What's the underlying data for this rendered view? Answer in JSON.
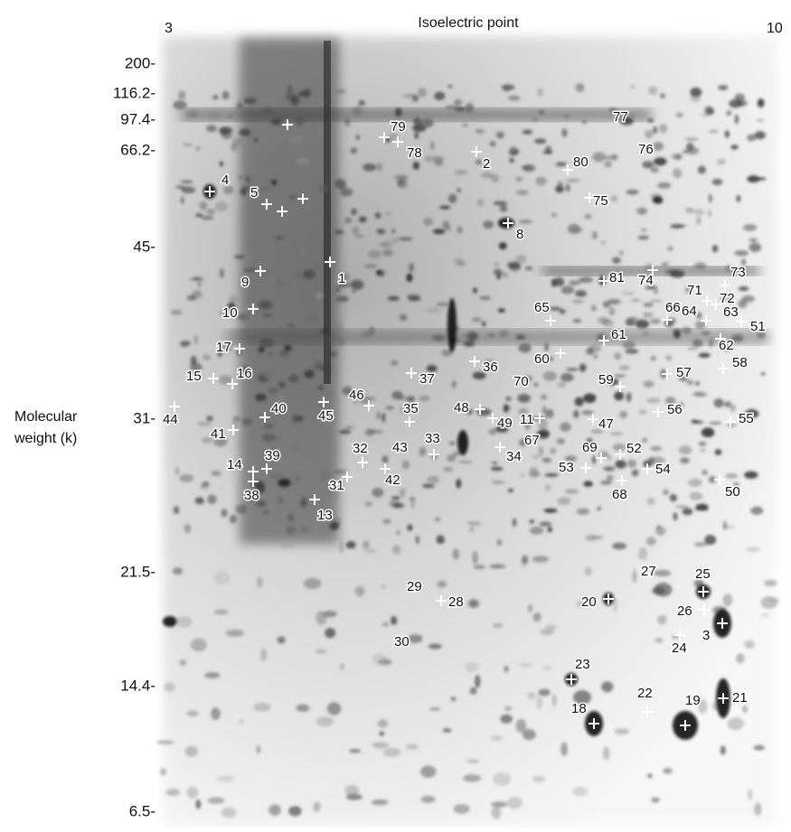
{
  "header": {
    "pi_low": "3",
    "title": "Isoelectric point",
    "pi_high": "10"
  },
  "y_axis": {
    "title": [
      "Molecular",
      "weight (k)"
    ],
    "ticks": [
      "200-",
      "116.2-",
      "97.4-",
      "66.2-",
      "45-",
      "31-",
      "21.5-",
      "14.4-",
      "6.5-"
    ]
  },
  "spots": [
    "4",
    "5",
    "1",
    "79",
    "78",
    "2",
    "77",
    "76",
    "80",
    "75",
    "8",
    "9",
    "10",
    "17",
    "15",
    "16",
    "44",
    "41",
    "40",
    "45",
    "46",
    "35",
    "37",
    "36",
    "48",
    "49",
    "11",
    "67",
    "34",
    "33",
    "43",
    "32",
    "42",
    "31",
    "14",
    "39",
    "38",
    "13",
    "70",
    "60",
    "65",
    "61",
    "59",
    "47",
    "69",
    "52",
    "53",
    "68",
    "54",
    "56",
    "57",
    "58",
    "55",
    "50",
    "81",
    "74",
    "73",
    "71",
    "72",
    "66",
    "64",
    "63",
    "62",
    "51",
    "27",
    "25",
    "26",
    "3",
    "24",
    "20",
    "23",
    "22",
    "19",
    "21",
    "18",
    "29",
    "28",
    "30"
  ]
}
